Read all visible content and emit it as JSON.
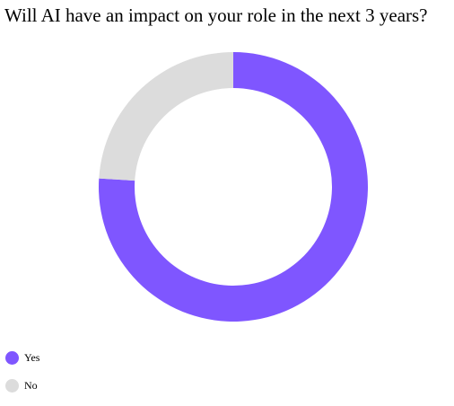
{
  "chart_data": {
    "type": "pie",
    "title": "Will AI have an impact on your role in the next 3 years?",
    "categories": [
      "Yes",
      "No"
    ],
    "values": [
      76,
      24
    ],
    "colors": [
      "#7f56ff",
      "#dcdcdc"
    ],
    "donut": true,
    "legend_position": "bottom-left"
  }
}
